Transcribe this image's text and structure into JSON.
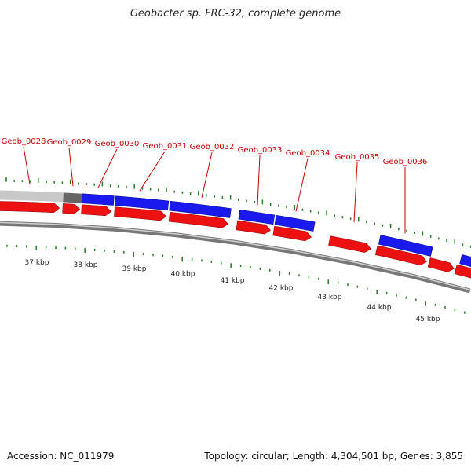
{
  "title": "Geobacter sp. FRC-32, complete genome",
  "footer": {
    "accession": "Accession: NC_011979",
    "summary": "Topology: circular; Length: 4,304,501 bp; Genes: 3,855"
  },
  "colors": {
    "gene_label": "#cc0000",
    "forward_feature": "#1a1aee",
    "reverse_feature": "#ee1111",
    "tick": "#2a7a2a",
    "backbone": "#777777",
    "gray_feature": "#c8c8c8",
    "dark_gray_feature": "#666666"
  },
  "scale_labels": [
    "37 kbp",
    "38 kbp",
    "39 kbp",
    "40 kbp",
    "41 kbp",
    "42 kbp",
    "43 kbp",
    "44 kbp",
    "45 kbp"
  ],
  "gene_labels": [
    "Geob_0028",
    "Geob_0029",
    "Geob_0030",
    "Geob_0031",
    "Geob_0032",
    "Geob_0033",
    "Geob_0034",
    "Geob_0035",
    "Geob_0036"
  ]
}
